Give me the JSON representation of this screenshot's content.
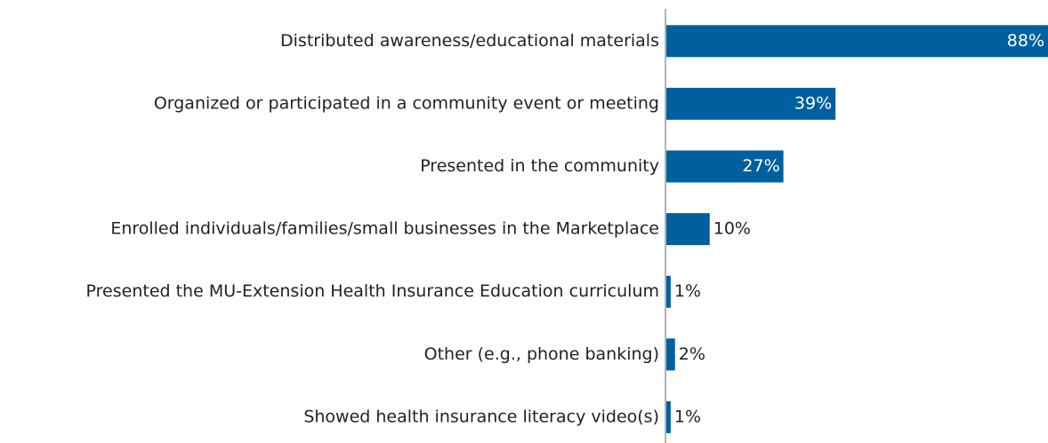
{
  "chart_data": {
    "type": "bar",
    "orientation": "horizontal",
    "color": "#00609f",
    "categories": [
      "Distributed awareness/educational materials",
      "Organized or participated in a community event or meeting",
      "Presented in the community",
      "Enrolled individuals/families/small businesses in the Marketplace",
      "Presented the MU-Extension Health Insurance Education curriculum",
      "Other (e.g., phone banking)",
      "Showed health insurance literacy video(s)"
    ],
    "values": [
      88,
      39,
      27,
      10,
      1,
      2,
      1
    ],
    "value_labels": [
      "88%",
      "39%",
      "27%",
      "10%",
      "1%",
      "2%",
      "1%"
    ]
  }
}
